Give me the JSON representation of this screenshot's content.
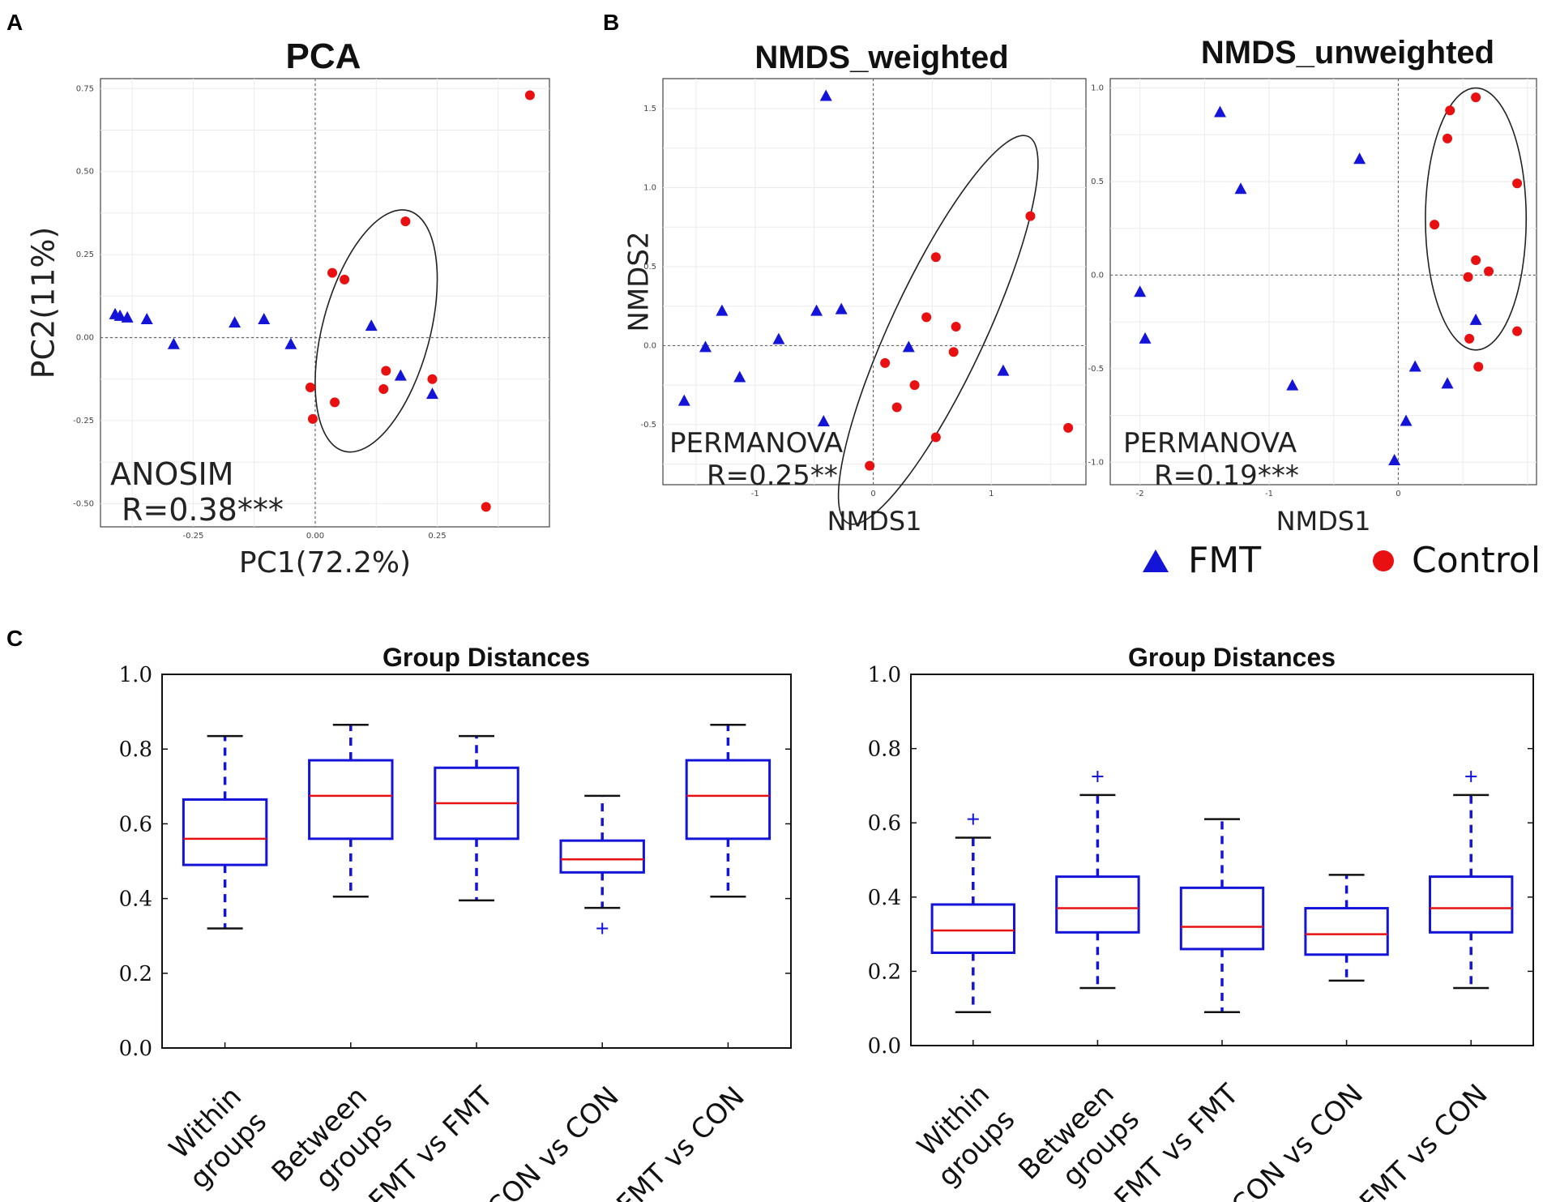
{
  "panels": {
    "a": "A",
    "b": "B",
    "c": "C"
  },
  "colors": {
    "fmt": "#1414d8",
    "control": "#e81010",
    "median": "#e81010",
    "box": "#1414d8"
  },
  "legend": {
    "fmt": "FMT",
    "control": "Control"
  },
  "chart_data": [
    {
      "type": "scatter",
      "title": "PCA",
      "xlabel": "PC1(72.2%)",
      "ylabel": "PC2(11%)",
      "xlim": [
        -0.44,
        0.48
      ],
      "ylim": [
        -0.57,
        0.78
      ],
      "xticks": [
        {
          "v": -0.25,
          "label": "-0.25"
        },
        {
          "v": 0,
          "label": "0.00"
        },
        {
          "v": 0.25,
          "label": "0.25"
        }
      ],
      "yticks": [
        {
          "v": -0.5,
          "label": "-0.50"
        },
        {
          "v": -0.25,
          "label": "-0.25"
        },
        {
          "v": 0,
          "label": "0.00"
        },
        {
          "v": 0.25,
          "label": "0.25"
        },
        {
          "v": 0.5,
          "label": "0.50"
        },
        {
          "v": 0.75,
          "label": "0.75"
        }
      ],
      "grid": true,
      "annotation": [
        "ANOSIM",
        "R=0.38***"
      ],
      "series": [
        {
          "name": "FMT",
          "marker": "triangle",
          "points": [
            [
              -0.41,
              0.07
            ],
            [
              -0.4,
              0.065
            ],
            [
              -0.385,
              0.06
            ],
            [
              -0.345,
              0.055
            ],
            [
              -0.29,
              -0.02
            ],
            [
              -0.165,
              0.045
            ],
            [
              -0.105,
              0.055
            ],
            [
              -0.05,
              -0.02
            ],
            [
              0.115,
              0.035
            ],
            [
              0.175,
              -0.115
            ],
            [
              0.24,
              -0.17
            ]
          ]
        },
        {
          "name": "Control",
          "marker": "circle",
          "points": [
            [
              0.44,
              0.73
            ],
            [
              0.185,
              0.35
            ],
            [
              0.035,
              0.195
            ],
            [
              0.06,
              0.175
            ],
            [
              0.145,
              -0.1
            ],
            [
              0.14,
              -0.155
            ],
            [
              0.24,
              -0.125
            ],
            [
              -0.01,
              -0.15
            ],
            [
              0.04,
              -0.195
            ],
            [
              -0.005,
              -0.245
            ],
            [
              0.35,
              -0.51
            ]
          ]
        }
      ],
      "ellipse": {
        "cx": 0.125,
        "cy": 0.02,
        "rx": 0.11,
        "ry": 0.375,
        "rotate_deg": 15
      }
    },
    {
      "type": "scatter",
      "title": "NMDS_weighted",
      "xlabel": "NMDS1",
      "ylabel": "NMDS2",
      "xlim": [
        -1.78,
        1.8
      ],
      "ylim": [
        -0.88,
        1.69
      ],
      "xticks": [
        {
          "v": -1,
          "label": "-1"
        },
        {
          "v": 0,
          "label": "0"
        },
        {
          "v": 1,
          "label": "1"
        }
      ],
      "yticks": [
        {
          "v": -0.5,
          "label": "-0.5"
        },
        {
          "v": 0,
          "label": "0.0"
        },
        {
          "v": 0.5,
          "label": "0.5"
        },
        {
          "v": 1,
          "label": "1.0"
        },
        {
          "v": 1.5,
          "label": "1.5"
        }
      ],
      "grid": true,
      "annotation": [
        "PERMANOVA",
        "R=0.25**"
      ],
      "series": [
        {
          "name": "FMT",
          "marker": "triangle",
          "points": [
            [
              -0.4,
              1.58
            ],
            [
              -1.6,
              -0.35
            ],
            [
              -1.42,
              -0.01
            ],
            [
              -1.28,
              0.22
            ],
            [
              -1.13,
              -0.2
            ],
            [
              -0.8,
              0.04
            ],
            [
              -0.48,
              0.22
            ],
            [
              -0.27,
              0.23
            ],
            [
              -0.42,
              -0.48
            ],
            [
              0.3,
              -0.01
            ],
            [
              1.1,
              -0.16
            ]
          ]
        },
        {
          "name": "Control",
          "marker": "circle",
          "points": [
            [
              1.33,
              0.82
            ],
            [
              0.53,
              0.56
            ],
            [
              0.45,
              0.18
            ],
            [
              0.7,
              0.12
            ],
            [
              0.1,
              -0.11
            ],
            [
              0.68,
              -0.04
            ],
            [
              0.35,
              -0.25
            ],
            [
              0.2,
              -0.39
            ],
            [
              0.53,
              -0.58
            ],
            [
              -0.03,
              -0.76
            ],
            [
              1.65,
              -0.52
            ]
          ]
        }
      ],
      "ellipse": {
        "cx": 0.55,
        "cy": 0.1,
        "rx": 0.4,
        "ry": 1.35,
        "rotate_deg": 25
      }
    },
    {
      "type": "scatter",
      "title": "NMDS_unweighted",
      "xlabel": "NMDS1",
      "ylabel": "",
      "xlim": [
        -2.23,
        1.07
      ],
      "ylim": [
        -1.12,
        1.05
      ],
      "xticks": [
        {
          "v": -2,
          "label": "-2"
        },
        {
          "v": -1,
          "label": "-1"
        },
        {
          "v": 0,
          "label": "0"
        }
      ],
      "yticks": [
        {
          "v": -1,
          "label": "-1.0"
        },
        {
          "v": -0.5,
          "label": "-0.5"
        },
        {
          "v": 0,
          "label": "0.0"
        },
        {
          "v": 0.5,
          "label": "0.5"
        },
        {
          "v": 1,
          "label": "1.0"
        }
      ],
      "grid": true,
      "annotation": [
        "PERMANOVA",
        "R=0.19***"
      ],
      "series": [
        {
          "name": "FMT",
          "marker": "triangle",
          "points": [
            [
              -1.38,
              0.87
            ],
            [
              -1.22,
              0.46
            ],
            [
              -0.3,
              0.62
            ],
            [
              -2.0,
              -0.09
            ],
            [
              -1.96,
              -0.34
            ],
            [
              -0.82,
              -0.59
            ],
            [
              0.13,
              -0.49
            ],
            [
              0.06,
              -0.78
            ],
            [
              0.38,
              -0.58
            ],
            [
              -0.03,
              -0.99
            ],
            [
              0.6,
              -0.24
            ]
          ]
        },
        {
          "name": "Control",
          "marker": "circle",
          "points": [
            [
              0.4,
              0.88
            ],
            [
              0.6,
              0.95
            ],
            [
              0.38,
              0.73
            ],
            [
              0.92,
              0.49
            ],
            [
              0.28,
              0.27
            ],
            [
              0.6,
              0.08
            ],
            [
              0.7,
              0.02
            ],
            [
              0.54,
              -0.01
            ],
            [
              0.55,
              -0.34
            ],
            [
              0.92,
              -0.3
            ],
            [
              0.62,
              -0.49
            ]
          ]
        }
      ],
      "ellipse": {
        "cx": 0.6,
        "cy": 0.3,
        "rx": 0.39,
        "ry": 0.7,
        "rotate_deg": 0
      }
    },
    {
      "type": "box",
      "title": "Group Distances",
      "ylim": [
        0,
        1
      ],
      "yticks": [
        {
          "v": 0,
          "label": "0.0"
        },
        {
          "v": 0.2,
          "label": "0.2"
        },
        {
          "v": 0.4,
          "label": "0.4"
        },
        {
          "v": 0.6,
          "label": "0.6"
        },
        {
          "v": 0.8,
          "label": "0.8"
        },
        {
          "v": 1,
          "label": "1.0"
        }
      ],
      "categories": [
        [
          "Within",
          "groups"
        ],
        [
          "Between",
          "groups"
        ],
        [
          "FMT vs FMT"
        ],
        [
          "CON vs CON"
        ],
        [
          "FMT vs CON"
        ]
      ],
      "boxes": [
        {
          "min": 0.32,
          "q1": 0.49,
          "median": 0.56,
          "q3": 0.665,
          "max": 0.835,
          "outliers": []
        },
        {
          "min": 0.405,
          "q1": 0.56,
          "median": 0.675,
          "q3": 0.77,
          "max": 0.865,
          "outliers": []
        },
        {
          "min": 0.395,
          "q1": 0.56,
          "median": 0.655,
          "q3": 0.75,
          "max": 0.835,
          "outliers": []
        },
        {
          "min": 0.375,
          "q1": 0.47,
          "median": 0.505,
          "q3": 0.555,
          "max": 0.675,
          "outliers": [
            0.32
          ]
        },
        {
          "min": 0.405,
          "q1": 0.56,
          "median": 0.675,
          "q3": 0.77,
          "max": 0.865,
          "outliers": []
        }
      ]
    },
    {
      "type": "box",
      "title": "Group Distances",
      "ylim": [
        0,
        1
      ],
      "yticks": [
        {
          "v": 0,
          "label": "0.0"
        },
        {
          "v": 0.2,
          "label": "0.2"
        },
        {
          "v": 0.4,
          "label": "0.4"
        },
        {
          "v": 0.6,
          "label": "0.6"
        },
        {
          "v": 0.8,
          "label": "0.8"
        },
        {
          "v": 1,
          "label": "1.0"
        }
      ],
      "categories": [
        [
          "Within",
          "groups"
        ],
        [
          "Between",
          "groups"
        ],
        [
          "FMT vs FMT"
        ],
        [
          "CON vs CON"
        ],
        [
          "FMT vs CON"
        ]
      ],
      "boxes": [
        {
          "min": 0.09,
          "q1": 0.25,
          "median": 0.31,
          "q3": 0.38,
          "max": 0.56,
          "outliers": [
            0.61
          ]
        },
        {
          "min": 0.155,
          "q1": 0.305,
          "median": 0.37,
          "q3": 0.455,
          "max": 0.675,
          "outliers": [
            0.725
          ]
        },
        {
          "min": 0.09,
          "q1": 0.26,
          "median": 0.32,
          "q3": 0.425,
          "max": 0.61,
          "outliers": []
        },
        {
          "min": 0.175,
          "q1": 0.245,
          "median": 0.3,
          "q3": 0.37,
          "max": 0.46,
          "outliers": []
        },
        {
          "min": 0.155,
          "q1": 0.305,
          "median": 0.37,
          "q3": 0.455,
          "max": 0.675,
          "outliers": [
            0.725
          ]
        }
      ]
    }
  ]
}
